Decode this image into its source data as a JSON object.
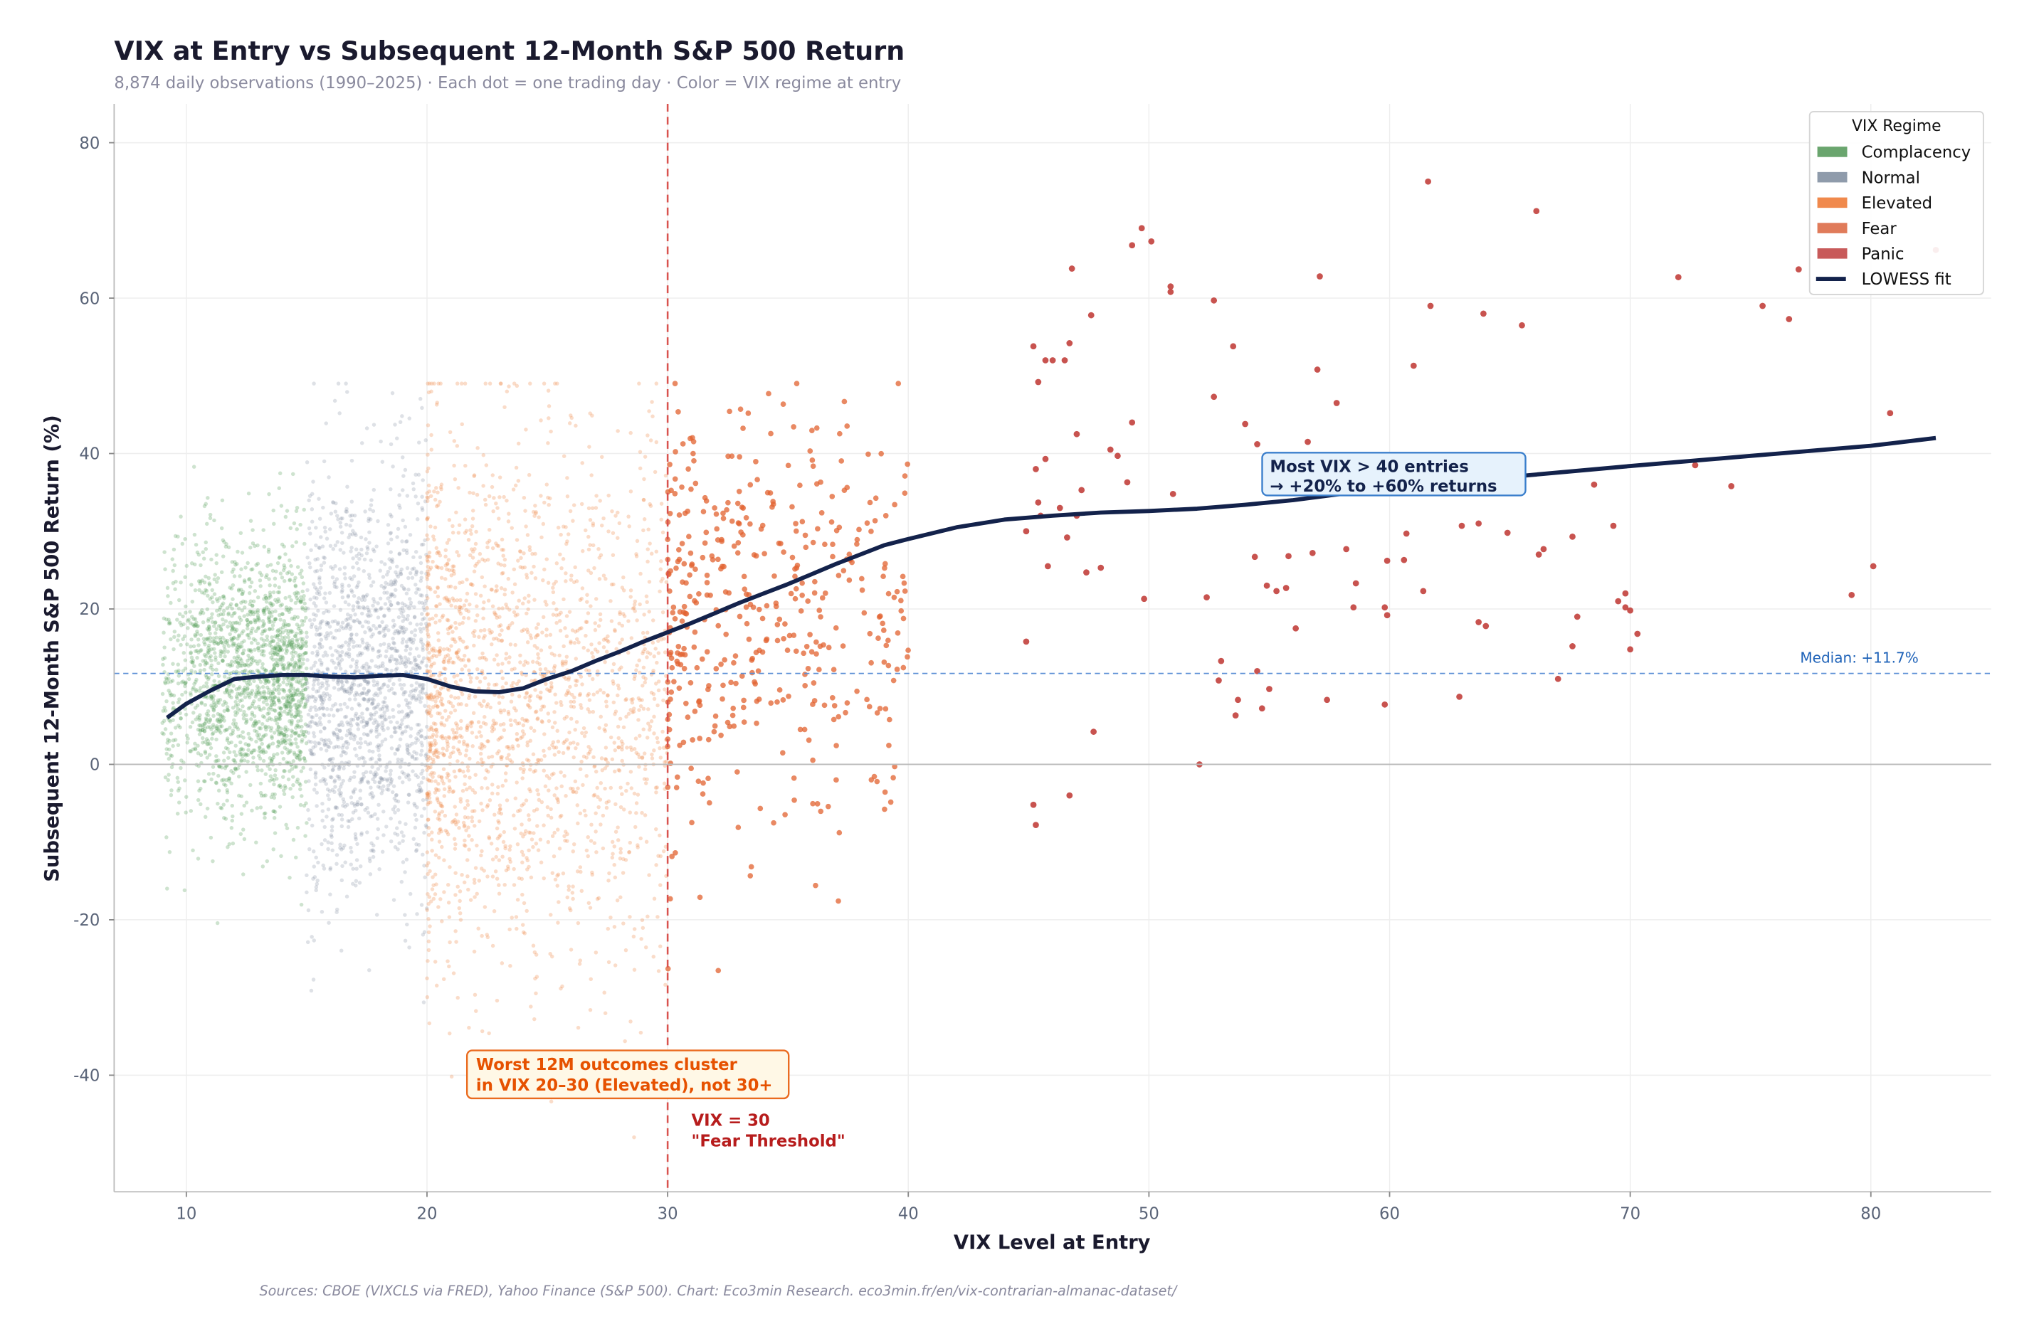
{
  "title": "VIX at Entry vs Subsequent 12-Month S&P 500 Return",
  "subtitle": "8,874 daily observations (1990–2025) · Each dot = one trading day · Color = VIX regime at entry",
  "footer": "Sources: CBOE (VIXCLS via FRED), Yahoo Finance (S&P 500). Chart: Eco3min Research.  eco3min.fr/en/vix-contrarian-almanac-dataset/",
  "chart_data": {
    "type": "scatter",
    "xlabel": "VIX Level at Entry",
    "ylabel": "Subsequent 12-Month S&P 500 Return (%)",
    "xlim": [
      7,
      85
    ],
    "ylim": [
      -55,
      85
    ],
    "xticks": [
      10,
      20,
      30,
      40,
      50,
      60,
      70,
      80
    ],
    "yticks": [
      -40,
      -20,
      0,
      20,
      40,
      60,
      80
    ],
    "grid": true,
    "legend": {
      "title": "VIX Regime",
      "placement": "top-right",
      "entries": [
        {
          "label": "Complacency",
          "color": "#6aa56e"
        },
        {
          "label": "Normal",
          "color": "#8f9bab"
        },
        {
          "label": "Elevated",
          "color": "#f0894c"
        },
        {
          "label": "Fear",
          "color": "#e07b5a"
        },
        {
          "label": "Panic",
          "color": "#c85a5a"
        },
        {
          "label": "LOWESS fit",
          "color": "#13224b"
        }
      ]
    },
    "regimes": [
      {
        "name": "Complacency",
        "vix_range": [
          9,
          15
        ],
        "color": "#4e9a52"
      },
      {
        "name": "Normal",
        "vix_range": [
          15,
          20
        ],
        "color": "#7d889a"
      },
      {
        "name": "Elevated",
        "vix_range": [
          20,
          30
        ],
        "color": "#f08a4b"
      },
      {
        "name": "Fear",
        "vix_range": [
          30,
          40
        ],
        "color": "#e2622f"
      },
      {
        "name": "Panic",
        "vix_range": [
          40,
          83
        ],
        "color": "#c2403c"
      }
    ],
    "panic_points": [
      [
        61.6,
        75
      ],
      [
        66.1,
        71.2
      ],
      [
        49.7,
        69
      ],
      [
        50.1,
        67.3
      ],
      [
        49.3,
        66.8
      ],
      [
        72,
        62.7
      ],
      [
        57.1,
        62.8
      ],
      [
        75.5,
        59
      ],
      [
        77,
        63.7
      ],
      [
        76.6,
        57.3
      ],
      [
        46.8,
        63.8
      ],
      [
        50.9,
        61.5
      ],
      [
        50.9,
        60.8
      ],
      [
        52.7,
        59.7
      ],
      [
        61.7,
        59
      ],
      [
        63.9,
        58
      ],
      [
        65.5,
        56.5
      ],
      [
        47.6,
        57.8
      ],
      [
        53.5,
        53.8
      ],
      [
        45.2,
        53.8
      ],
      [
        46.7,
        54.2
      ],
      [
        45.7,
        52
      ],
      [
        46,
        52
      ],
      [
        46.5,
        52
      ],
      [
        61,
        51.3
      ],
      [
        57,
        50.8
      ],
      [
        45.4,
        49.2
      ],
      [
        52.7,
        47.3
      ],
      [
        57.8,
        46.5
      ],
      [
        49.3,
        44
      ],
      [
        54,
        43.8
      ],
      [
        80.8,
        45.2
      ],
      [
        47,
        42.5
      ],
      [
        54.5,
        41.2
      ],
      [
        56.6,
        41.5
      ],
      [
        48.4,
        40.5
      ],
      [
        48.7,
        39.7
      ],
      [
        45.7,
        39.3
      ],
      [
        72.7,
        38.5
      ],
      [
        45.3,
        38
      ],
      [
        74.2,
        35.8
      ],
      [
        68.5,
        36
      ],
      [
        51,
        34.8
      ],
      [
        49.1,
        36.3
      ],
      [
        47.2,
        35.3
      ],
      [
        45.4,
        33.7
      ],
      [
        46.3,
        33
      ],
      [
        45.5,
        32
      ],
      [
        47,
        32
      ],
      [
        44.9,
        30
      ],
      [
        46.6,
        29.2
      ],
      [
        63,
        30.7
      ],
      [
        63.7,
        31
      ],
      [
        64.9,
        29.8
      ],
      [
        69.3,
        30.7
      ],
      [
        60.7,
        29.7
      ],
      [
        67.6,
        29.3
      ],
      [
        66.4,
        27.7
      ],
      [
        66.2,
        27
      ],
      [
        58.2,
        27.7
      ],
      [
        56.8,
        27.2
      ],
      [
        55.8,
        26.8
      ],
      [
        54.4,
        26.7
      ],
      [
        48,
        25.3
      ],
      [
        45.8,
        25.5
      ],
      [
        47.4,
        24.7
      ],
      [
        59.9,
        26.2
      ],
      [
        60.6,
        26.3
      ],
      [
        80.1,
        25.5
      ],
      [
        58.6,
        23.3
      ],
      [
        54.9,
        23
      ],
      [
        69.8,
        22
      ],
      [
        69.8,
        20.2
      ],
      [
        61.4,
        22.3
      ],
      [
        55.3,
        22.3
      ],
      [
        55.7,
        22.7
      ],
      [
        52.4,
        21.5
      ],
      [
        49.8,
        21.3
      ],
      [
        79.2,
        21.8
      ],
      [
        69.5,
        21
      ],
      [
        58.5,
        20.2
      ],
      [
        59.8,
        20.2
      ],
      [
        59.9,
        19.2
      ],
      [
        67.8,
        19
      ],
      [
        70,
        19.8
      ],
      [
        63.7,
        18.3
      ],
      [
        64,
        17.8
      ],
      [
        70.3,
        16.8
      ],
      [
        56.1,
        17.5
      ],
      [
        44.9,
        15.8
      ],
      [
        67.6,
        15.2
      ],
      [
        70,
        14.8
      ],
      [
        53,
        13.3
      ],
      [
        54.5,
        12
      ],
      [
        52.9,
        10.8
      ],
      [
        67,
        11
      ],
      [
        55,
        9.7
      ],
      [
        53.7,
        8.3
      ],
      [
        57.4,
        8.3
      ],
      [
        62.9,
        8.7
      ],
      [
        59.8,
        7.7
      ],
      [
        54.7,
        7.2
      ],
      [
        53.6,
        6.3
      ],
      [
        47.7,
        4.2
      ],
      [
        52.1,
        0
      ],
      [
        45.2,
        -5.2
      ],
      [
        46.7,
        -4
      ],
      [
        45.3,
        -7.8
      ],
      [
        82.7,
        66.2
      ]
    ],
    "lowess_fit": {
      "x": [
        9.2,
        10,
        11,
        12,
        13,
        14,
        15,
        16,
        17,
        18,
        19,
        20,
        21,
        22,
        23,
        24,
        25,
        26,
        27,
        28,
        29,
        30,
        31,
        32,
        33,
        34,
        35,
        36,
        37,
        38,
        39,
        40,
        42,
        44,
        46,
        48,
        50,
        52,
        54,
        56,
        58,
        60,
        65,
        70,
        75,
        80,
        82.7
      ],
      "y": [
        6,
        7.8,
        9.5,
        11,
        11.3,
        11.5,
        11.5,
        11.3,
        11.2,
        11.4,
        11.5,
        11,
        10,
        9.4,
        9.3,
        9.8,
        11,
        12,
        13.3,
        14.5,
        15.8,
        17,
        18.2,
        19.5,
        20.8,
        22,
        23.2,
        24.5,
        25.8,
        27,
        28.2,
        29,
        30.5,
        31.5,
        32,
        32.4,
        32.6,
        32.9,
        33.4,
        34,
        34.8,
        35.5,
        37,
        38.4,
        39.7,
        41,
        42
      ]
    },
    "median_return": 11.7,
    "median_label": "Median: +11.7%",
    "fear_threshold": 30,
    "annotations": {
      "threshold_line1": "VIX = 30",
      "threshold_line2": "\"Fear Threshold\"",
      "worst_line1": "Worst 12M outcomes cluster",
      "worst_line2": "in VIX 20–30 (Elevated), not 30+",
      "panic_line1": "Most VIX > 40 entries",
      "panic_line2": "→ +20% to +60% returns"
    }
  }
}
